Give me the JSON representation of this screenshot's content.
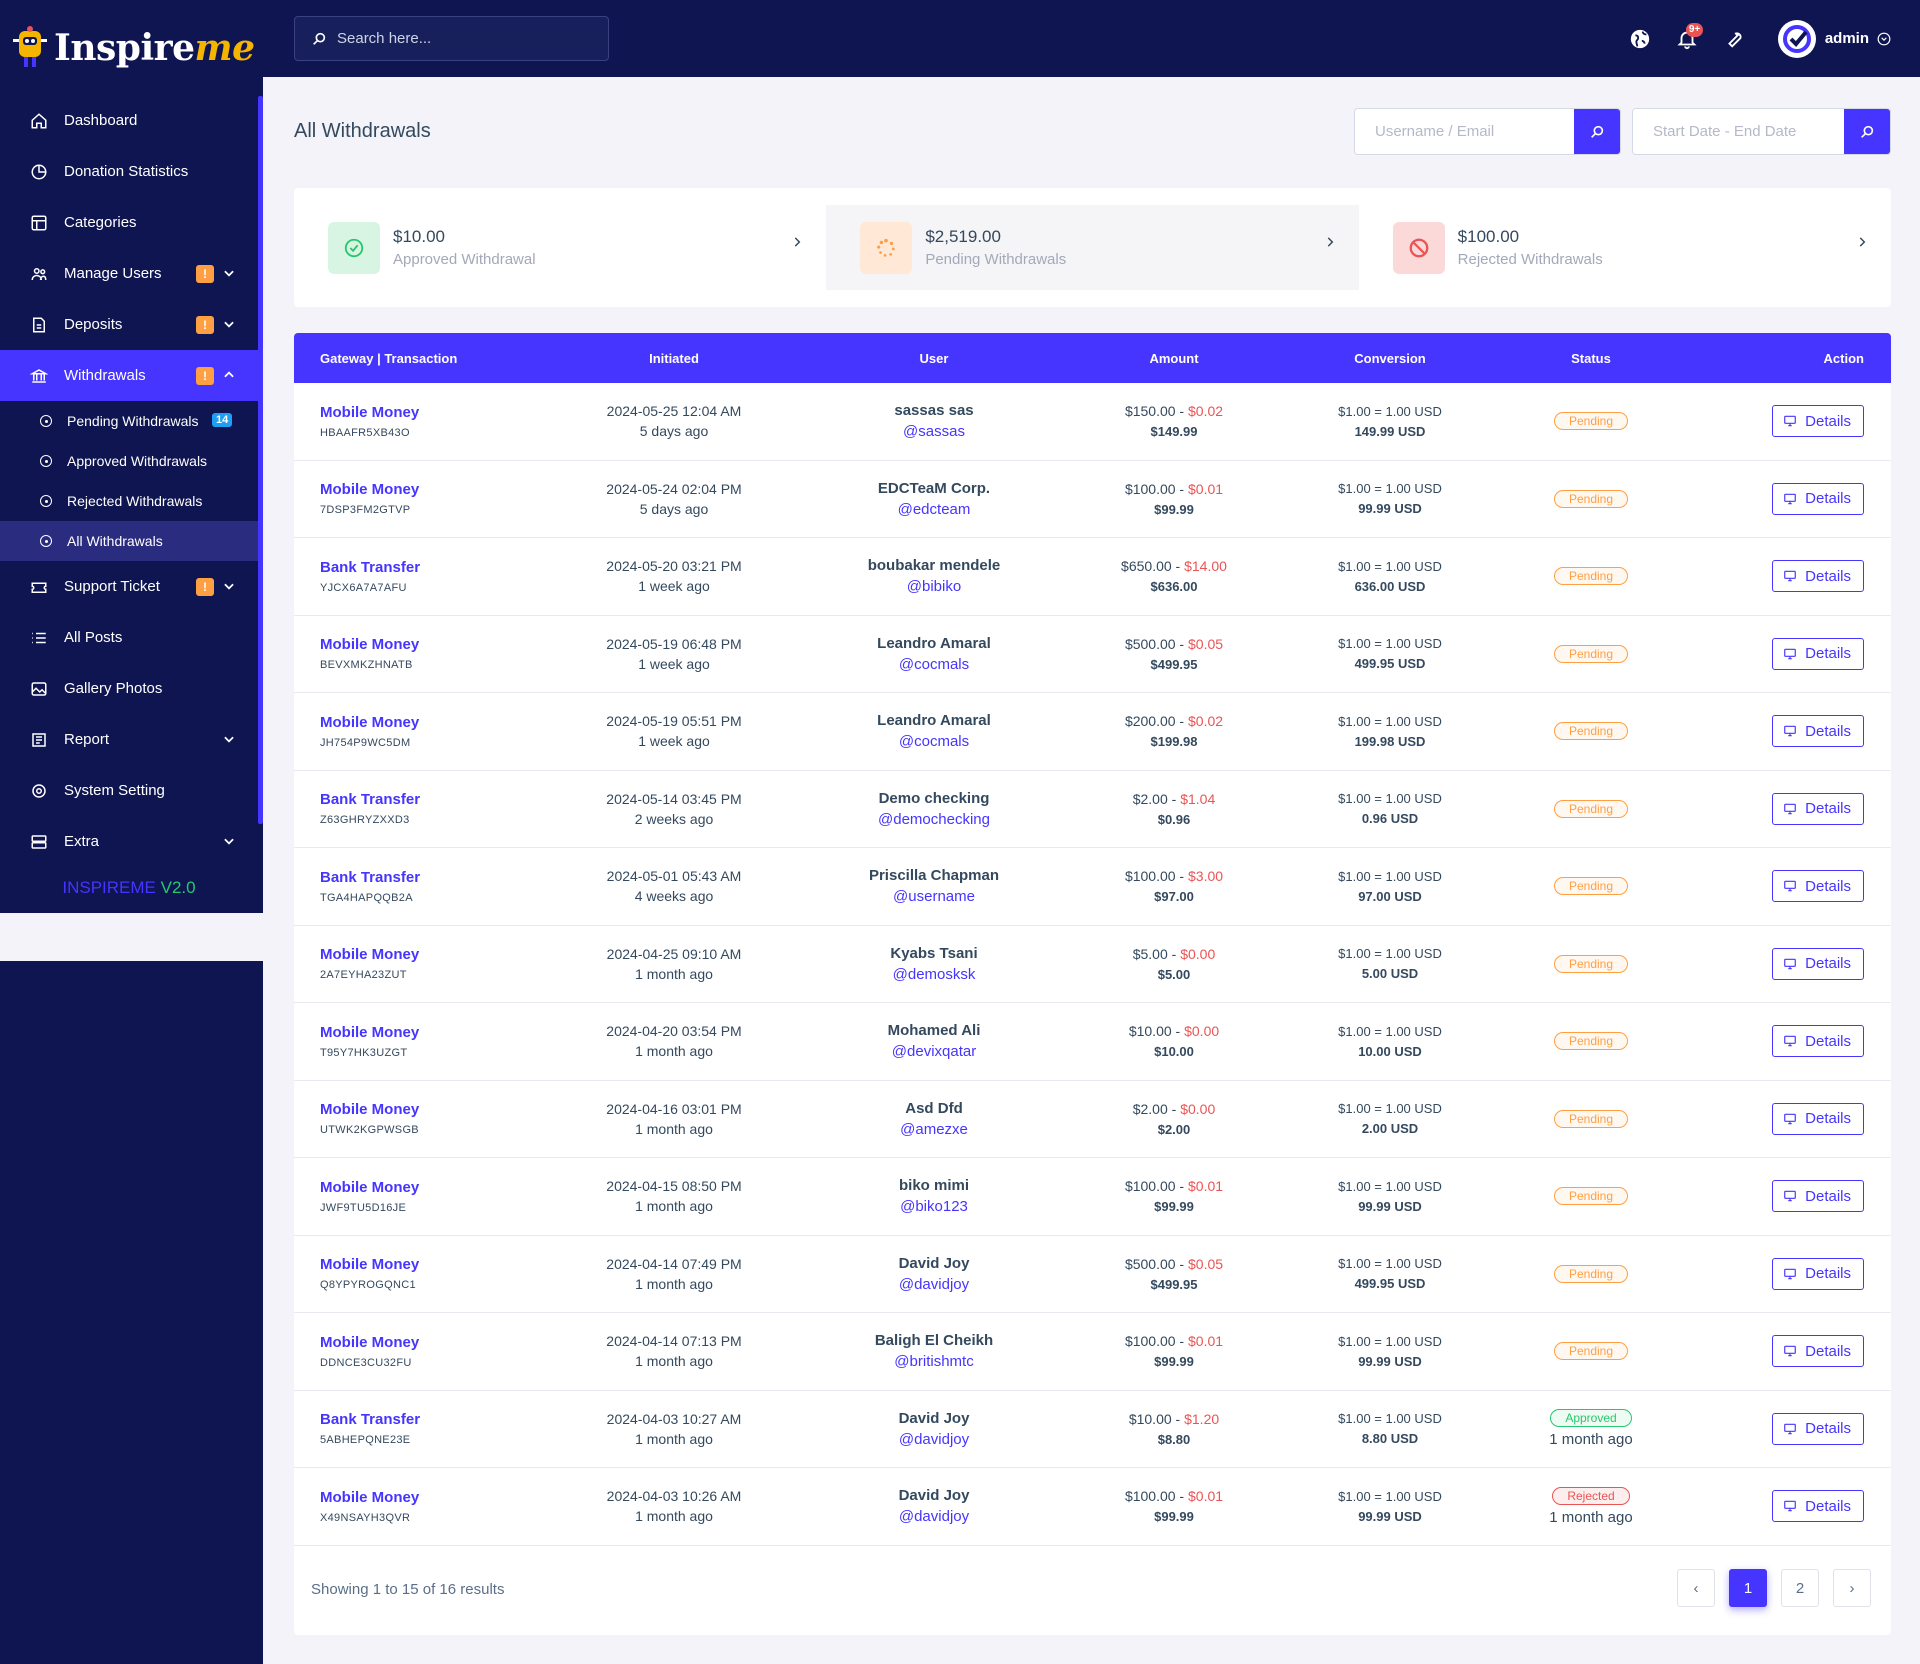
{
  "brand": {
    "name_a": "Inspire",
    "name_b": "me",
    "version_a": "INSPIREME",
    "version_b": "V2.0"
  },
  "search": {
    "placeholder": "Search here..."
  },
  "topbar": {
    "notif_count": "9+",
    "admin_name": "admin"
  },
  "nav": {
    "dashboard": "Dashboard",
    "donation_statistics": "Donation Statistics",
    "categories": "Categories",
    "manage_users": "Manage Users",
    "deposits": "Deposits",
    "withdrawals": "Withdrawals",
    "warn": "!",
    "sub": {
      "pending": "Pending Withdrawals",
      "pending_count": "14",
      "approved": "Approved Withdrawals",
      "rejected": "Rejected Withdrawals",
      "all": "All Withdrawals"
    },
    "support_ticket": "Support Ticket",
    "all_posts": "All Posts",
    "gallery_photos": "Gallery Photos",
    "report": "Report",
    "system_setting": "System Setting",
    "extra": "Extra"
  },
  "page": {
    "title": "All Withdrawals",
    "filter_user_placeholder": "Username / Email",
    "filter_date_placeholder": "Start Date - End Date"
  },
  "widgets": {
    "approved": {
      "amount": "$10.00",
      "label": "Approved Withdrawal",
      "color": "#28c76f"
    },
    "pending": {
      "amount": "$2,519.00",
      "label": "Pending Withdrawals",
      "color": "#ff9f43"
    },
    "rejected": {
      "amount": "$100.00",
      "label": "Rejected Withdrawals",
      "color": "#ea5455"
    }
  },
  "table": {
    "headers": [
      "Gateway | Transaction",
      "Initiated",
      "User",
      "Amount",
      "Conversion",
      "Status",
      "Action"
    ],
    "details_label": "Details",
    "rows": [
      {
        "gateway": "Mobile Money",
        "trx": "HBAAFR5XB43O",
        "date": "2024-05-25 12:04 AM",
        "ago": "5 days ago",
        "user": "sassas sas",
        "handle": "@sassas",
        "amount": "$150.00",
        "charge": "$0.02",
        "net": "$149.99",
        "rate": "$1.00 = 1.00 USD",
        "conv": "149.99 USD",
        "status": "Pending",
        "status_class": "pending",
        "status_ago": ""
      },
      {
        "gateway": "Mobile Money",
        "trx": "7DSP3FM2GTVP",
        "date": "2024-05-24 02:04 PM",
        "ago": "5 days ago",
        "user": "EDCTeaM Corp.",
        "handle": "@edcteam",
        "amount": "$100.00",
        "charge": "$0.01",
        "net": "$99.99",
        "rate": "$1.00 = 1.00 USD",
        "conv": "99.99 USD",
        "status": "Pending",
        "status_class": "pending",
        "status_ago": ""
      },
      {
        "gateway": "Bank Transfer",
        "trx": "YJCX6A7A7AFU",
        "date": "2024-05-20 03:21 PM",
        "ago": "1 week ago",
        "user": "boubakar mendele",
        "handle": "@bibiko",
        "amount": "$650.00",
        "charge": "$14.00",
        "net": "$636.00",
        "rate": "$1.00 = 1.00 USD",
        "conv": "636.00 USD",
        "status": "Pending",
        "status_class": "pending",
        "status_ago": ""
      },
      {
        "gateway": "Mobile Money",
        "trx": "BEVXMKZHNATB",
        "date": "2024-05-19 06:48 PM",
        "ago": "1 week ago",
        "user": "Leandro Amaral",
        "handle": "@cocmals",
        "amount": "$500.00",
        "charge": "$0.05",
        "net": "$499.95",
        "rate": "$1.00 = 1.00 USD",
        "conv": "499.95 USD",
        "status": "Pending",
        "status_class": "pending",
        "status_ago": ""
      },
      {
        "gateway": "Mobile Money",
        "trx": "JH754P9WC5DM",
        "date": "2024-05-19 05:51 PM",
        "ago": "1 week ago",
        "user": "Leandro Amaral",
        "handle": "@cocmals",
        "amount": "$200.00",
        "charge": "$0.02",
        "net": "$199.98",
        "rate": "$1.00 = 1.00 USD",
        "conv": "199.98 USD",
        "status": "Pending",
        "status_class": "pending",
        "status_ago": ""
      },
      {
        "gateway": "Bank Transfer",
        "trx": "Z63GHRYZXXD3",
        "date": "2024-05-14 03:45 PM",
        "ago": "2 weeks ago",
        "user": "Demo checking",
        "handle": "@demochecking",
        "amount": "$2.00",
        "charge": "$1.04",
        "net": "$0.96",
        "rate": "$1.00 = 1.00 USD",
        "conv": "0.96 USD",
        "status": "Pending",
        "status_class": "pending",
        "status_ago": ""
      },
      {
        "gateway": "Bank Transfer",
        "trx": "TGA4HAPQQB2A",
        "date": "2024-05-01 05:43 AM",
        "ago": "4 weeks ago",
        "user": "Priscilla Chapman",
        "handle": "@username",
        "amount": "$100.00",
        "charge": "$3.00",
        "net": "$97.00",
        "rate": "$1.00 = 1.00 USD",
        "conv": "97.00 USD",
        "status": "Pending",
        "status_class": "pending",
        "status_ago": ""
      },
      {
        "gateway": "Mobile Money",
        "trx": "2A7EYHA23ZUT",
        "date": "2024-04-25 09:10 AM",
        "ago": "1 month ago",
        "user": "Kyabs Tsani",
        "handle": "@demosksk",
        "amount": "$5.00",
        "charge": "$0.00",
        "net": "$5.00",
        "rate": "$1.00 = 1.00 USD",
        "conv": "5.00 USD",
        "status": "Pending",
        "status_class": "pending",
        "status_ago": ""
      },
      {
        "gateway": "Mobile Money",
        "trx": "T95Y7HK3UZGT",
        "date": "2024-04-20 03:54 PM",
        "ago": "1 month ago",
        "user": "Mohamed Ali",
        "handle": "@devixqatar",
        "amount": "$10.00",
        "charge": "$0.00",
        "net": "$10.00",
        "rate": "$1.00 = 1.00 USD",
        "conv": "10.00 USD",
        "status": "Pending",
        "status_class": "pending",
        "status_ago": ""
      },
      {
        "gateway": "Mobile Money",
        "trx": "UTWK2KGPWSGB",
        "date": "2024-04-16 03:01 PM",
        "ago": "1 month ago",
        "user": "Asd Dfd",
        "handle": "@amezxe",
        "amount": "$2.00",
        "charge": "$0.00",
        "net": "$2.00",
        "rate": "$1.00 = 1.00 USD",
        "conv": "2.00 USD",
        "status": "Pending",
        "status_class": "pending",
        "status_ago": ""
      },
      {
        "gateway": "Mobile Money",
        "trx": "JWF9TU5D16JE",
        "date": "2024-04-15 08:50 PM",
        "ago": "1 month ago",
        "user": "biko mimi",
        "handle": "@biko123",
        "amount": "$100.00",
        "charge": "$0.01",
        "net": "$99.99",
        "rate": "$1.00 = 1.00 USD",
        "conv": "99.99 USD",
        "status": "Pending",
        "status_class": "pending",
        "status_ago": ""
      },
      {
        "gateway": "Mobile Money",
        "trx": "Q8YPYROGQNC1",
        "date": "2024-04-14 07:49 PM",
        "ago": "1 month ago",
        "user": "David Joy",
        "handle": "@davidjoy",
        "amount": "$500.00",
        "charge": "$0.05",
        "net": "$499.95",
        "rate": "$1.00 = 1.00 USD",
        "conv": "499.95 USD",
        "status": "Pending",
        "status_class": "pending",
        "status_ago": ""
      },
      {
        "gateway": "Mobile Money",
        "trx": "DDNCE3CU32FU",
        "date": "2024-04-14 07:13 PM",
        "ago": "1 month ago",
        "user": "Baligh El Cheikh",
        "handle": "@britishmtc",
        "amount": "$100.00",
        "charge": "$0.01",
        "net": "$99.99",
        "rate": "$1.00 = 1.00 USD",
        "conv": "99.99 USD",
        "status": "Pending",
        "status_class": "pending",
        "status_ago": ""
      },
      {
        "gateway": "Bank Transfer",
        "trx": "5ABHEPQNE23E",
        "date": "2024-04-03 10:27 AM",
        "ago": "1 month ago",
        "user": "David Joy",
        "handle": "@davidjoy",
        "amount": "$10.00",
        "charge": "$1.20",
        "net": "$8.80",
        "rate": "$1.00 = 1.00 USD",
        "conv": "8.80 USD",
        "status": "Approved",
        "status_class": "approved",
        "status_ago": "1 month ago"
      },
      {
        "gateway": "Mobile Money",
        "trx": "X49NSAYH3QVR",
        "date": "2024-04-03 10:26 AM",
        "ago": "1 month ago",
        "user": "David Joy",
        "handle": "@davidjoy",
        "amount": "$100.00",
        "charge": "$0.01",
        "net": "$99.99",
        "rate": "$1.00 = 1.00 USD",
        "conv": "99.99 USD",
        "status": "Rejected",
        "status_class": "rejected",
        "status_ago": "1 month ago"
      }
    ]
  },
  "pagination": {
    "showing": "Showing 1 to 15 of 16 results",
    "prev": "‹",
    "next": "›",
    "pages": [
      "1",
      "2"
    ],
    "current": "1"
  },
  "colors": {
    "sidebar": "#0e1550",
    "accent": "#4634ff",
    "pending": "#ff9f43",
    "approved": "#28c76f",
    "rejected": "#ea5455"
  }
}
